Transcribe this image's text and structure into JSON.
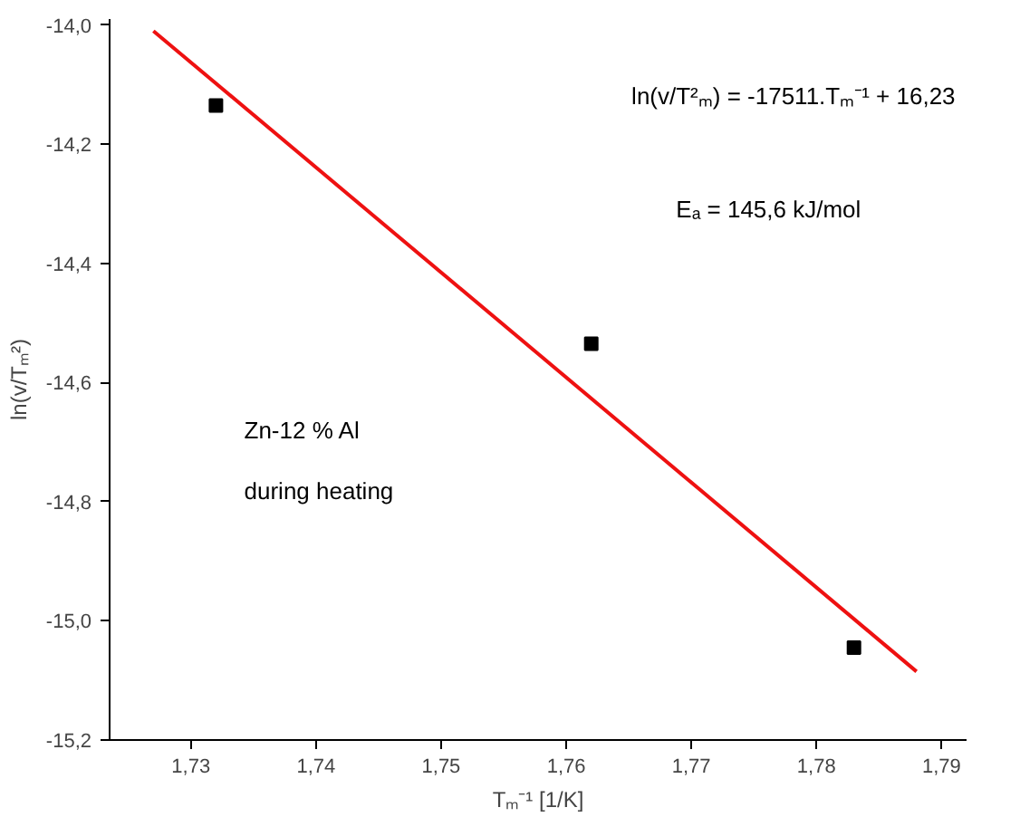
{
  "chart_data": {
    "type": "scatter",
    "xlabel": "Tₘ⁻¹ [1/K]",
    "ylabel": "ln(v/Tₘ²)",
    "xlim": [
      1.7235,
      1.792
    ],
    "ylim": [
      -15.2,
      -13.99
    ],
    "xticks": [
      {
        "value": 1.73,
        "label": "1,73"
      },
      {
        "value": 1.74,
        "label": "1,74"
      },
      {
        "value": 1.75,
        "label": "1,75"
      },
      {
        "value": 1.76,
        "label": "1,76"
      },
      {
        "value": 1.77,
        "label": "1,77"
      },
      {
        "value": 1.78,
        "label": "1,78"
      },
      {
        "value": 1.79,
        "label": "1,79"
      }
    ],
    "yticks": [
      {
        "value": -14.0,
        "label": "-14,0"
      },
      {
        "value": -14.2,
        "label": "-14,2"
      },
      {
        "value": -14.4,
        "label": "-14,4"
      },
      {
        "value": -14.6,
        "label": "-14,6"
      },
      {
        "value": -14.8,
        "label": "-14,8"
      },
      {
        "value": -15.0,
        "label": "-15,0"
      },
      {
        "value": -15.2,
        "label": "-15,2"
      }
    ],
    "series": [
      {
        "color": "#000000",
        "marker": "square",
        "x": [
          1.732,
          1.762,
          1.783
        ],
        "values": [
          -14.135,
          -14.535,
          -15.045
        ]
      },
      {
        "type": "line",
        "color": "#ee1111",
        "x": [
          1.727,
          1.788
        ],
        "values": [
          -14.01,
          -15.085
        ]
      }
    ],
    "annotations": [
      "ln(v/T²ₘ) = -17511.Tₘ⁻¹ + 16,23",
      "Eₐ = 145,6 kJ/mol",
      "Zn-12 % Al",
      "during heating"
    ],
    "grid": false
  }
}
